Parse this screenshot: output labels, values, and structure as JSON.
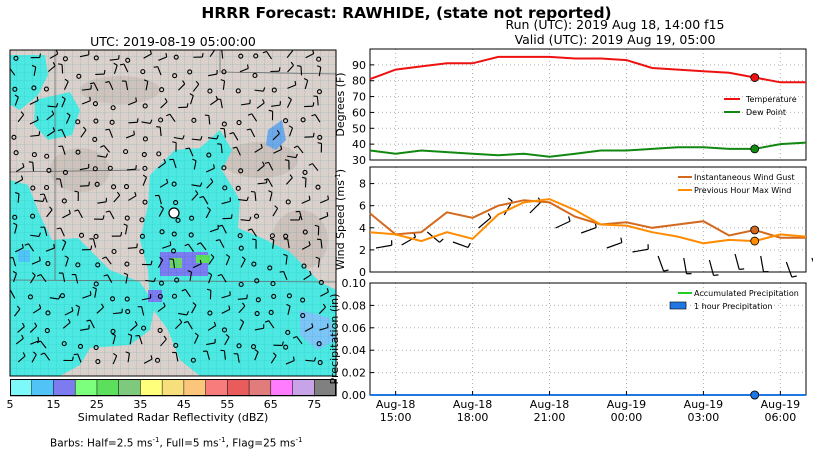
{
  "title": "HRRR Forecast: RAWHIDE, (state not reported)",
  "run_line": "Run (UTC): 2019 Aug 18, 14:00 f15",
  "valid_line": "Valid (UTC): 2019 Aug 19, 05:00",
  "map": {
    "title": "UTC: 2019-08-19 05:00:00",
    "colorbar_title": "Simulated Radar Reflectivity (dBZ)",
    "colorbar_ticks": [
      "5",
      "15",
      "25",
      "35",
      "45",
      "55",
      "65",
      "75"
    ],
    "colorbar_colors": [
      "#7ef9f9",
      "#52c3f7",
      "#7c7cf0",
      "#7cff7c",
      "#5cdf5c",
      "#7dc97d",
      "#ffff7c",
      "#f7e07c",
      "#fbc67c",
      "#f97c7c",
      "#e85c5c",
      "#e07c7c",
      "#ff7cff",
      "#c8a3e8",
      "#808080"
    ],
    "barbs_note": "Barbs: Half=2.5 ms",
    "barbs_unit": "-1",
    "barbs_note2": ", Full=5 ms",
    "barbs_note3": ", Flag=25 ms",
    "colors": {
      "terrain": "#dcd0cc",
      "echo": "#4de8e2",
      "site": "#ffffff"
    }
  },
  "x_tick_labels": [
    [
      "Aug-18",
      "15:00"
    ],
    [
      "Aug-18",
      "18:00"
    ],
    [
      "Aug-18",
      "21:00"
    ],
    [
      "Aug-19",
      "00:00"
    ],
    [
      "Aug-19",
      "03:00"
    ],
    [
      "Aug-19",
      "06:00"
    ]
  ],
  "chart_data": [
    {
      "type": "line",
      "ylabel": "Degrees (F)",
      "ylim": [
        30,
        100
      ],
      "yticks": [
        30,
        40,
        50,
        60,
        70,
        80,
        90
      ],
      "grid": true,
      "legend": "right",
      "x": [
        "2019-08-18 14:00",
        "2019-08-18 15:00",
        "2019-08-18 16:00",
        "2019-08-18 17:00",
        "2019-08-18 18:00",
        "2019-08-18 19:00",
        "2019-08-18 20:00",
        "2019-08-18 21:00",
        "2019-08-18 22:00",
        "2019-08-18 23:00",
        "2019-08-19 00:00",
        "2019-08-19 01:00",
        "2019-08-19 02:00",
        "2019-08-19 03:00",
        "2019-08-19 04:00",
        "2019-08-19 05:00",
        "2019-08-19 06:00",
        "2019-08-19 07:00"
      ],
      "series": [
        {
          "name": "Temperature",
          "color": "#ee1111",
          "values": [
            81,
            87,
            89,
            91,
            91,
            95,
            95,
            95,
            94,
            94,
            93,
            88,
            87,
            86,
            85,
            82,
            79,
            79
          ]
        },
        {
          "name": "Dew Point",
          "color": "#118811",
          "values": [
            36,
            34,
            36,
            35,
            34,
            33,
            34,
            32,
            34,
            36,
            36,
            37,
            38,
            38,
            37,
            37,
            40,
            41
          ]
        }
      ],
      "marker_index": 15
    },
    {
      "type": "line",
      "ylabel": "Wind Speed (ms",
      "ylabel_sup": "-1",
      "ylabel_end": ")",
      "ylim": [
        0,
        9.5
      ],
      "yticks": [
        0,
        2,
        4,
        6,
        8
      ],
      "grid": true,
      "legend": "top-right",
      "x": [
        "2019-08-18 14:00",
        "2019-08-18 15:00",
        "2019-08-18 16:00",
        "2019-08-18 17:00",
        "2019-08-18 18:00",
        "2019-08-18 19:00",
        "2019-08-18 20:00",
        "2019-08-18 21:00",
        "2019-08-18 22:00",
        "2019-08-18 23:00",
        "2019-08-19 00:00",
        "2019-08-19 01:00",
        "2019-08-19 02:00",
        "2019-08-19 03:00",
        "2019-08-19 04:00",
        "2019-08-19 05:00",
        "2019-08-19 06:00",
        "2019-08-19 07:00"
      ],
      "series": [
        {
          "name": "Instantaneous Wind Gust",
          "color": "#d2691e",
          "values": [
            5.3,
            3.4,
            3.6,
            5.4,
            4.9,
            6.0,
            6.5,
            6.3,
            5.0,
            4.3,
            4.5,
            4.0,
            4.3,
            4.6,
            3.3,
            3.8,
            3.1,
            3.1
          ]
        },
        {
          "name": "Previous Hour Max Wind",
          "color": "#ff8c00",
          "values": [
            3.6,
            3.4,
            2.8,
            3.6,
            3.0,
            5.2,
            6.3,
            6.6,
            5.6,
            4.3,
            4.2,
            3.6,
            3.2,
            2.6,
            2.9,
            2.8,
            3.4,
            3.2
          ]
        }
      ],
      "marker_index": 15
    },
    {
      "type": "area",
      "ylabel": "Precipitation (in)",
      "ylim": [
        0,
        0.1
      ],
      "yticks": [
        "0.00",
        "0.02",
        "0.04",
        "0.06",
        "0.08",
        "0.10"
      ],
      "grid": true,
      "legend": "top-right",
      "series": [
        {
          "name": "Accumulated Precipitation",
          "color": "#22cc22",
          "values": [
            0,
            0,
            0,
            0,
            0,
            0,
            0,
            0,
            0,
            0,
            0,
            0,
            0,
            0,
            0,
            0,
            0,
            0
          ]
        },
        {
          "name": "1 hour Precipitation",
          "color": "#1f77e4",
          "values": [
            0,
            0,
            0,
            0,
            0,
            0,
            0,
            0,
            0,
            0,
            0,
            0,
            0,
            0,
            0,
            0,
            0,
            0
          ]
        }
      ],
      "marker_index": 15
    }
  ]
}
